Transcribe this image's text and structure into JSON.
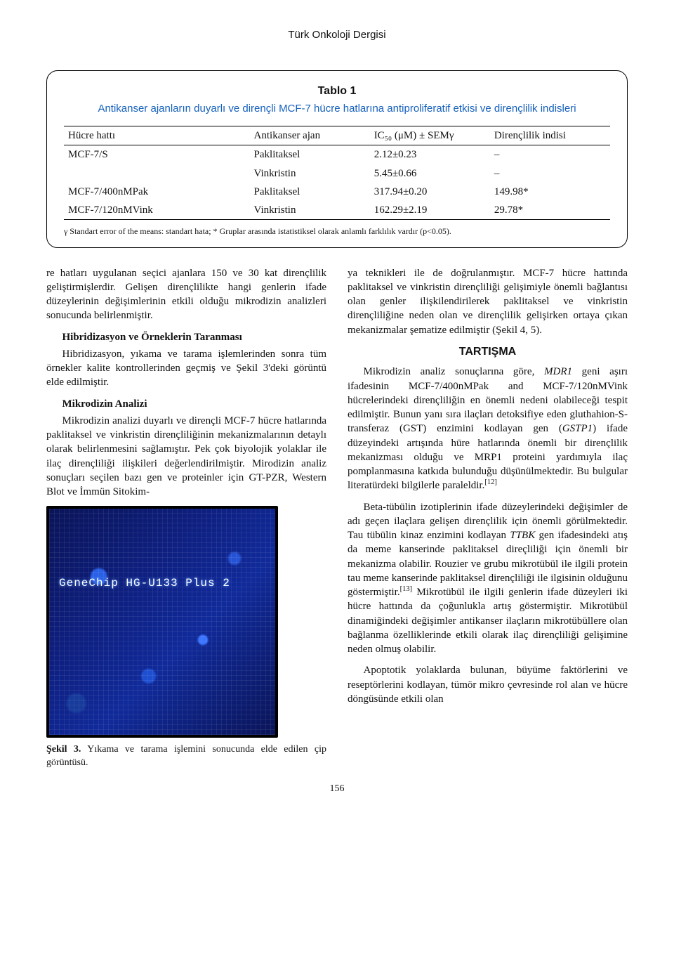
{
  "running_head": "Türk Onkoloji Dergisi",
  "page_number": "156",
  "table": {
    "number": "Tablo 1",
    "caption": "Antikanser ajanların duyarlı ve dirençli MCF-7 hücre hatlarına antiproliferatif etkisi ve dirençlilik indisleri",
    "columns": [
      "Hücre hattı",
      "Antikanser ajan",
      "IC₅₀ (μM) ± SEMγ",
      "Dirençlilik indisi"
    ],
    "rows": [
      [
        "MCF-7/S",
        "Paklitaksel",
        "2.12±0.23",
        "–"
      ],
      [
        "",
        "Vinkristin",
        "5.45±0.66",
        "–"
      ],
      [
        "MCF-7/400nMPak",
        "Paklitaksel",
        "317.94±0.20",
        "149.98*"
      ],
      [
        "MCF-7/120nMVink",
        "Vinkristin",
        "162.29±2.19",
        "29.78*"
      ]
    ],
    "footnote": "γ Standart error of the means: standart hata; * Gruplar arasında istatistiksel olarak anlamlı farklılık vardır (p<0.05)."
  },
  "left": {
    "p1": "re hatları uygulanan seçici ajanlara 150 ve 30 kat dirençlilik geliştirmişlerdir. Gelişen dirençlilikte hangi genlerin ifade düzeylerinin değişimlerinin etkili olduğu mikrodizin analizleri sonucunda belirlenmiştir.",
    "h1": "Hibridizasyon ve Örneklerin Taranması",
    "p2": "Hibridizasyon, yıkama ve tarama işlemlerinden sonra tüm örnekler kalite kontrollerinden geçmiş ve Şekil 3'deki görüntü elde edilmiştir.",
    "h2": "Mikrodizin Analizi",
    "p3": "Mikrodizin analizi duyarlı ve dirençli MCF-7 hücre hatlarında paklitaksel ve vinkristin dirençliliğinin mekanizmalarının detaylı olarak belirlenmesini sağlamıştır. Pek çok biyolojik yolaklar ile ilaç dirençliliği ilişkileri değerlendirilmiştir. Mirodizin analiz sonuçları seçilen bazı gen ve proteinler için GT-PZR, Western Blot ve İmmün Sitokim-"
  },
  "figure": {
    "chip_label": "GeneChip HG-U133 Plus 2",
    "caption_bold": "Şekil 3.",
    "caption_rest": " Yıkama ve tarama işlemini sonucunda elde edilen çip görüntüsü."
  },
  "right": {
    "p1": "ya teknikleri ile de doğrulanmıştır. MCF-7 hücre hattında paklitaksel ve vinkristin dirençliliği gelişimiyle önemli bağlantısı olan genler ilişkilendirilerek paklitaksel ve vinkristin dirençliliğine neden olan ve dirençlilik gelişirken ortaya çıkan mekanizmalar şematize edilmiştir (Şekil 4, 5).",
    "sec": "TARTIŞMA",
    "p2a": "Mikrodizin analiz sonuçlarına göre, ",
    "p2b": "MDR1",
    "p2c": " geni aşırı ifadesinin MCF-7/400nMPak and MCF-7/120nMVink hücrelerindeki dirençliliğin en önemli nedeni olabileceği tespit edilmiştir. Bunun yanı sıra ilaçları detoksifiye eden gluthahion-S-transferaz (GST) enzimini kodlayan gen (",
    "p2d": "GSTP1",
    "p2e": ") ifade düzeyindeki artışında hüre hatlarında önemli bir dirençlilik mekanizması olduğu ve MRP1 proteini yardımıyla ilaç pomplanmasına katkıda bulunduğu düşünülmektedir. Bu bulgular literatürdeki bilgilerle paraleldir.",
    "cite1": "[12]",
    "p3a": "Beta-tübülin izotiplerinin ifade düzeylerindeki değişimler de adı geçen ilaçlara gelişen dirençlilik için önemli görülmektedir. Tau tübülin kinaz enzimini kodlayan ",
    "p3b": "TTBK",
    "p3c": " gen ifadesindeki atış da meme kanserinde paklitaksel direçliliği için önemli bir mekanizma olabilir. Rouzier ve grubu mikrotübül ile ilgili protein tau meme kanserinde paklitaksel dirençliliği ile ilgisinin olduğunu göstermiştir.",
    "cite2": "[13]",
    "p3d": " Mikrotübül ile ilgili genlerin ifade düzeyleri iki hücre hattında da çoğunlukla artış göstermiştir. Mikrotübül dinamiğindeki değişimler antikanser ilaçların mikrotübüllere olan bağlanma özelliklerinde etkili olarak ilaç dirençliliği gelişimine neden olmuş olabilir.",
    "p4": "Apoptotik yolaklarda bulunan, büyüme faktörlerini ve reseptörlerini kodlayan, tümör mikro çevresinde rol alan ve hücre döngüsünde etkili olan"
  }
}
